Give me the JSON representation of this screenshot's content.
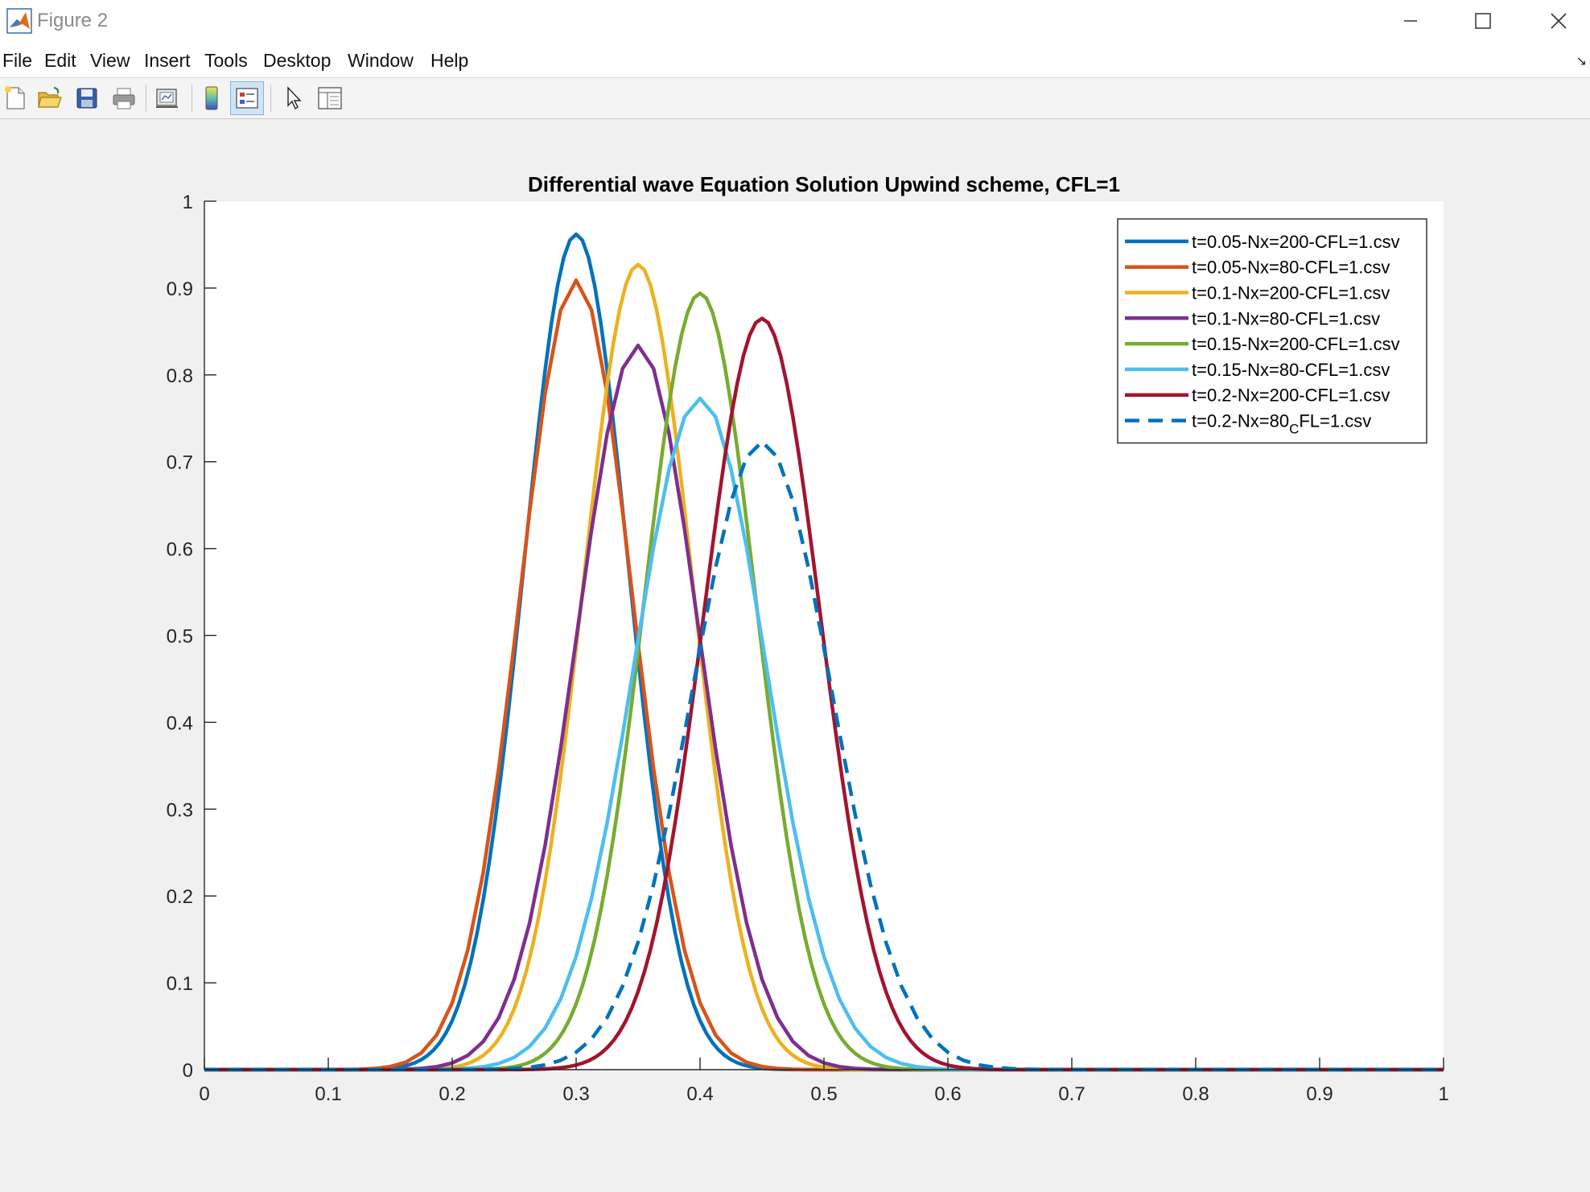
{
  "window": {
    "title": "Figure 2",
    "controls": {
      "minimize": "—",
      "maximize": "☐",
      "close": "✕"
    }
  },
  "menu": {
    "items": [
      "File",
      "Edit",
      "View",
      "Insert",
      "Tools",
      "Desktop",
      "Window",
      "Help"
    ],
    "overflow": "↘"
  },
  "toolbar": {
    "buttons": [
      {
        "name": "new-figure-icon"
      },
      {
        "name": "open-file-icon"
      },
      {
        "name": "save-icon"
      },
      {
        "name": "print-icon"
      },
      {
        "name": "link-plot-icon"
      },
      {
        "name": "insert-colorbar-icon"
      },
      {
        "name": "insert-legend-icon",
        "active": true
      },
      {
        "name": "edit-plot-icon"
      },
      {
        "name": "property-inspector-icon"
      }
    ]
  },
  "colors": {
    "blue": "#0072bd",
    "orange": "#d95319",
    "yellow": "#edb120",
    "purple": "#7e2f8e",
    "green": "#77ac30",
    "cyan": "#4dbeee",
    "darkred": "#a2142f"
  },
  "chart_data": {
    "type": "line",
    "title": "Differential wave Equation Solution Upwind scheme, CFL=1",
    "xlabel": "",
    "ylabel": "",
    "xlim": [
      0,
      1
    ],
    "ylim": [
      0,
      1
    ],
    "xticks": [
      "0",
      "0.1",
      "0.2",
      "0.3",
      "0.4",
      "0.5",
      "0.6",
      "0.7",
      "0.8",
      "0.9",
      "1"
    ],
    "yticks": [
      "0",
      "0.1",
      "0.2",
      "0.3",
      "0.4",
      "0.5",
      "0.6",
      "0.7",
      "0.8",
      "0.9",
      "1"
    ],
    "grid": false,
    "legend_position": "top-right",
    "series": [
      {
        "name": "t=0.05-Nx=200-CFL=1.csv",
        "center": 0.3,
        "peak": 0.962,
        "sigma": 0.042,
        "color": "#0072bd",
        "style": "solid",
        "points": 201
      },
      {
        "name": "t=0.05-Nx=80-CFL=1.csv",
        "center": 0.3,
        "peak": 0.909,
        "sigma": 0.045,
        "color": "#d95319",
        "style": "solid",
        "points": 81
      },
      {
        "name": "t=0.1-Nx=200-CFL=1.csv",
        "center": 0.35,
        "peak": 0.927,
        "sigma": 0.044,
        "color": "#edb120",
        "style": "solid",
        "points": 201
      },
      {
        "name": "t=0.1-Nx=80-CFL=1.csv",
        "center": 0.35,
        "peak": 0.834,
        "sigma": 0.049,
        "color": "#7e2f8e",
        "style": "solid",
        "points": 81
      },
      {
        "name": "t=0.15-Nx=200-CFL=1.csv",
        "center": 0.4,
        "peak": 0.894,
        "sigma": 0.045,
        "color": "#77ac30",
        "style": "solid",
        "points": 201
      },
      {
        "name": "t=0.15-Nx=80-CFL=1.csv",
        "center": 0.4,
        "peak": 0.773,
        "sigma": 0.053,
        "color": "#4dbeee",
        "style": "solid",
        "points": 81
      },
      {
        "name": "t=0.2-Nx=200-CFL=1.csv",
        "center": 0.45,
        "peak": 0.865,
        "sigma": 0.047,
        "color": "#a2142f",
        "style": "solid",
        "points": 201
      },
      {
        "name": "t=0.2-Nx=80",
        "name_sub": "C",
        "name_tail": "FL=1.csv",
        "center": 0.45,
        "peak": 0.723,
        "sigma": 0.056,
        "color": "#0072bd",
        "style": "dashed",
        "points": 81
      }
    ]
  }
}
